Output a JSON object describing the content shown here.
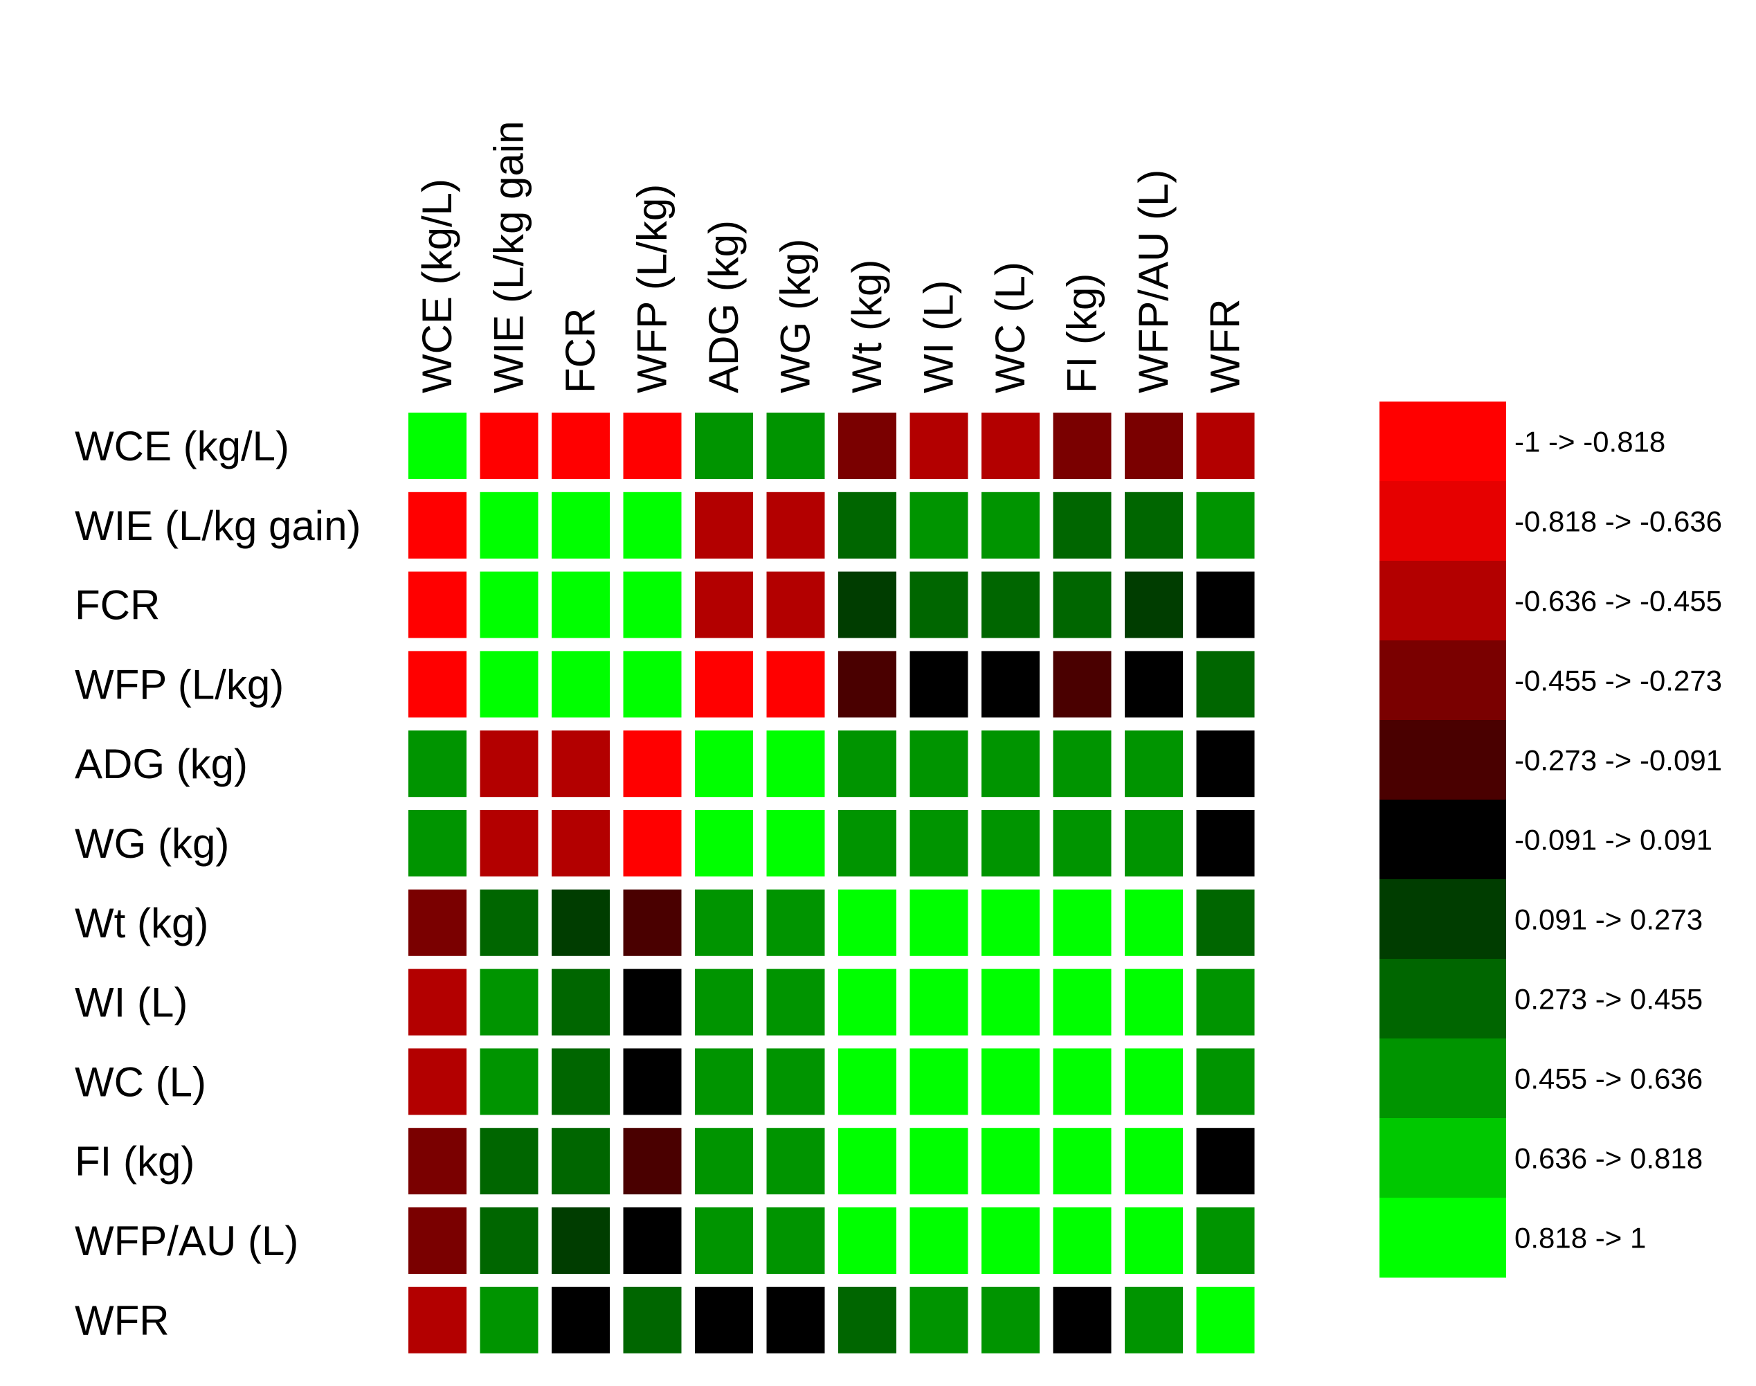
{
  "chart_data": {
    "type": "heatmap",
    "title": "",
    "xlabel": "",
    "ylabel": "",
    "columns": [
      "WCE (kg/L)",
      "WIE (L/kg gain",
      "FCR",
      "WFP (L/kg)",
      "ADG (kg)",
      "WG (kg)",
      "Wt (kg)",
      "WI (L)",
      "WC (L)",
      "FI (kg)",
      "WFP/AU (L)",
      "WFR"
    ],
    "rows": [
      "WCE (kg/L)",
      "WIE (L/kg gain)",
      "FCR",
      "WFP (L/kg)",
      "ADG (kg)",
      "WG (kg)",
      "Wt (kg)",
      "WI (L)",
      "WC (L)",
      "FI (kg)",
      "WFP/AU (L)",
      "WFR"
    ],
    "values": [
      [
        0.91,
        -0.91,
        -0.91,
        -0.91,
        0.55,
        0.55,
        -0.36,
        -0.55,
        -0.55,
        -0.36,
        -0.36,
        -0.55
      ],
      [
        -0.91,
        0.91,
        0.91,
        0.91,
        -0.55,
        -0.55,
        0.36,
        0.55,
        0.55,
        0.36,
        0.36,
        0.55
      ],
      [
        -0.91,
        0.91,
        0.91,
        0.91,
        -0.55,
        -0.55,
        0.18,
        0.36,
        0.36,
        0.36,
        0.18,
        0.0
      ],
      [
        -0.91,
        0.91,
        0.91,
        0.91,
        -0.91,
        -0.91,
        -0.18,
        0.0,
        0.0,
        -0.18,
        0.0,
        0.36
      ],
      [
        0.55,
        -0.55,
        -0.55,
        -0.91,
        0.91,
        0.91,
        0.55,
        0.55,
        0.55,
        0.55,
        0.55,
        0.0
      ],
      [
        0.55,
        -0.55,
        -0.55,
        -0.91,
        0.91,
        0.91,
        0.55,
        0.55,
        0.55,
        0.55,
        0.55,
        0.0
      ],
      [
        -0.36,
        0.36,
        0.18,
        -0.18,
        0.55,
        0.55,
        0.91,
        0.91,
        0.91,
        0.91,
        0.91,
        0.36
      ],
      [
        -0.55,
        0.55,
        0.36,
        0.0,
        0.55,
        0.55,
        0.91,
        0.91,
        0.91,
        0.91,
        0.91,
        0.55
      ],
      [
        -0.55,
        0.55,
        0.36,
        0.0,
        0.55,
        0.55,
        0.91,
        0.91,
        0.91,
        0.91,
        0.91,
        0.55
      ],
      [
        -0.36,
        0.36,
        0.36,
        -0.18,
        0.55,
        0.55,
        0.91,
        0.91,
        0.91,
        0.91,
        0.91,
        0.0
      ],
      [
        -0.36,
        0.36,
        0.18,
        0.0,
        0.55,
        0.55,
        0.91,
        0.91,
        0.91,
        0.91,
        0.91,
        0.55
      ],
      [
        -0.55,
        0.55,
        0.0,
        0.36,
        0.0,
        0.0,
        0.36,
        0.55,
        0.55,
        0.0,
        0.55,
        0.91
      ]
    ],
    "legend": {
      "placement": "right",
      "bins": [
        {
          "label": "-1 -> -0.818",
          "min": -1,
          "max": -0.818,
          "color": "#ff0000"
        },
        {
          "label": "-0.818 -> -0.636",
          "min": -0.818,
          "max": -0.636,
          "color": "#e60000"
        },
        {
          "label": "-0.636 -> -0.455",
          "min": -0.636,
          "max": -0.455,
          "color": "#b30000"
        },
        {
          "label": "-0.455 -> -0.273",
          "min": -0.455,
          "max": -0.273,
          "color": "#7a0000"
        },
        {
          "label": "-0.273 -> -0.091",
          "min": -0.273,
          "max": -0.091,
          "color": "#4a0000"
        },
        {
          "label": "-0.091 -> 0.091",
          "min": -0.091,
          "max": 0.091,
          "color": "#000000"
        },
        {
          "label": "0.091 -> 0.273",
          "min": 0.091,
          "max": 0.273,
          "color": "#003d00"
        },
        {
          "label": "0.273 -> 0.455",
          "min": 0.273,
          "max": 0.455,
          "color": "#006600"
        },
        {
          "label": "0.455 -> 0.636",
          "min": 0.455,
          "max": 0.636,
          "color": "#009400"
        },
        {
          "label": "0.636 -> 0.818",
          "min": 0.636,
          "max": 0.818,
          "color": "#00c800"
        },
        {
          "label": "0.818 -> 1",
          "min": 0.818,
          "max": 1,
          "color": "#00ff00"
        }
      ]
    }
  }
}
